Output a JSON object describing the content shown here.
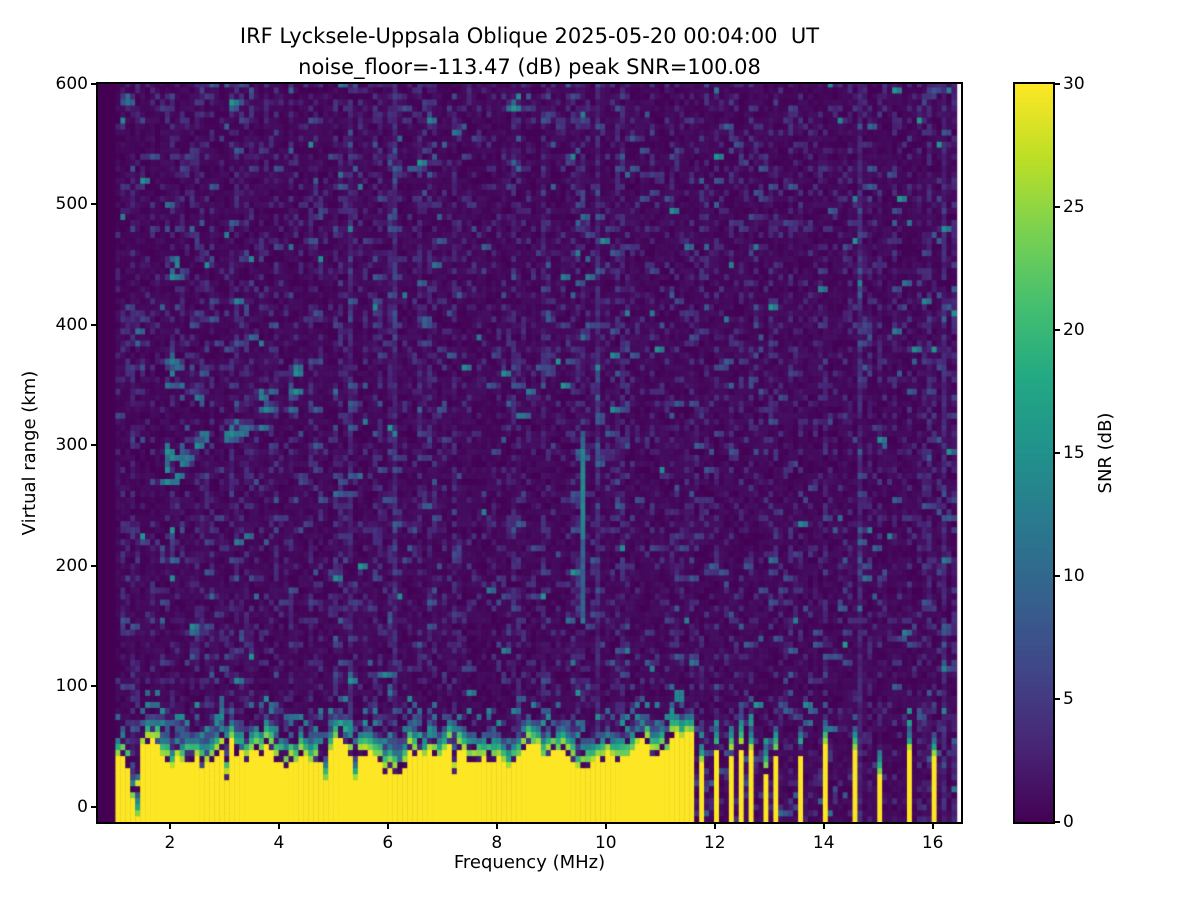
{
  "chart_data": {
    "type": "heatmap",
    "title": {
      "line1": "IRF Lycksele-Uppsala Oblique 2025-05-20 00:04:00  UT",
      "line2": "noise_floor=-113.47 (dB) peak SNR=100.08"
    },
    "axes": {
      "xlabel": "Frequency (MHz)",
      "ylabel": "Virtual range (km)",
      "xlim": [
        0.68,
        16.52
      ],
      "ylim": [
        -12.5,
        600
      ],
      "xticks": [
        2,
        4,
        6,
        8,
        10,
        12,
        14,
        16
      ],
      "yticks": [
        0,
        100,
        200,
        300,
        400,
        500,
        600
      ],
      "grid": false
    },
    "colorbar": {
      "label": "SNR (dB)",
      "min": 0,
      "max": 30,
      "ticks": [
        0,
        5,
        10,
        15,
        20,
        25,
        30
      ],
      "colormap": "viridis",
      "colormap_stops": [
        [
          0.0,
          "#440154"
        ],
        [
          0.1,
          "#482475"
        ],
        [
          0.2,
          "#414487"
        ],
        [
          0.3,
          "#35608d"
        ],
        [
          0.4,
          "#2a788e"
        ],
        [
          0.5,
          "#21918c"
        ],
        [
          0.6,
          "#22a884"
        ],
        [
          0.7,
          "#44bf70"
        ],
        [
          0.8,
          "#7ad151"
        ],
        [
          0.9,
          "#bddf26"
        ],
        [
          1.0,
          "#fde725"
        ]
      ]
    },
    "colors": {
      "figure_bg": "#ffffff",
      "heatmap_floor": "#440154",
      "heatmap_peak": "#fde725",
      "spine": "#000000",
      "text": "#000000"
    },
    "heatmap": {
      "freq_start": 1.0,
      "freq_end": 16.45,
      "freq_step": 0.0908,
      "range_step_km": 5,
      "noise_speckle_db_range": [
        0,
        16
      ],
      "ground_band": {
        "freq_from": 1.0,
        "freq_to": 11.66,
        "snr_db": 30,
        "top_km_min": 30,
        "top_km_max": 58,
        "typical_top_km": 45,
        "ragged_below_mhz": 1.45,
        "bulge": {
          "freq_from": 10.85,
          "freq_to": 11.6,
          "max_top_km": 75
        }
      },
      "stripes": [
        {
          "f": 11.8,
          "top": 36,
          "tealTop": 60
        },
        {
          "f": 12.06,
          "top": 46,
          "tealTop": 72
        },
        {
          "f": 12.29,
          "top": 44,
          "tealTop": 66
        },
        {
          "f": 12.5,
          "top": 48,
          "tealTop": 70
        },
        {
          "f": 12.69,
          "top": 45,
          "tealTop": 78
        },
        {
          "f": 12.9,
          "top": 28,
          "tealTop": 56
        },
        {
          "f": 13.1,
          "top": 44,
          "tealTop": 68
        },
        {
          "f": 13.59,
          "top": 43,
          "tealTop": 56
        },
        {
          "f": 14.07,
          "top": 52,
          "tealTop": 74
        },
        {
          "f": 14.57,
          "top": 46,
          "tealTop": 58
        },
        {
          "f": 15.06,
          "top": 26,
          "tealTop": 46
        },
        {
          "f": 15.56,
          "top": 45,
          "tealTop": 70
        },
        {
          "f": 16.05,
          "top": 42,
          "tealTop": 58
        }
      ],
      "vertical_streak": {
        "freq_mhz": 9.58,
        "km_from": 155,
        "km_to": 310,
        "snr_db": 9,
        "bright_km_from": 225,
        "bright_km_to": 295,
        "bright_snr_db": 12.5
      },
      "echo_trace_points": [
        [
          1.92,
          272
        ],
        [
          1.98,
          280
        ],
        [
          2.05,
          288
        ],
        [
          2.12,
          276
        ],
        [
          2.2,
          284
        ],
        [
          2.28,
          292
        ],
        [
          1.95,
          295
        ],
        [
          2.1,
          268
        ],
        [
          2.5,
          300
        ],
        [
          2.6,
          308
        ],
        [
          2.68,
          304
        ],
        [
          3.0,
          306
        ],
        [
          3.1,
          312
        ],
        [
          3.2,
          318
        ],
        [
          3.28,
          308
        ],
        [
          3.65,
          316
        ],
        [
          3.7,
          338
        ],
        [
          3.75,
          330
        ],
        [
          3.85,
          344
        ],
        [
          4.22,
          328
        ],
        [
          4.28,
          360
        ],
        [
          4.3,
          345
        ],
        [
          4.33,
          366
        ],
        [
          1.95,
          350
        ],
        [
          2.05,
          360
        ],
        [
          2.15,
          366
        ],
        [
          2.0,
          368
        ],
        [
          2.25,
          352
        ]
      ],
      "extra_spots": [
        [
          2.05,
          440
        ],
        [
          2.12,
          452
        ],
        [
          1.15,
          572
        ],
        [
          1.2,
          585
        ],
        [
          8.35,
          578
        ],
        [
          8.42,
          590
        ],
        [
          5.95,
          112
        ],
        [
          6.05,
          95
        ]
      ]
    }
  }
}
